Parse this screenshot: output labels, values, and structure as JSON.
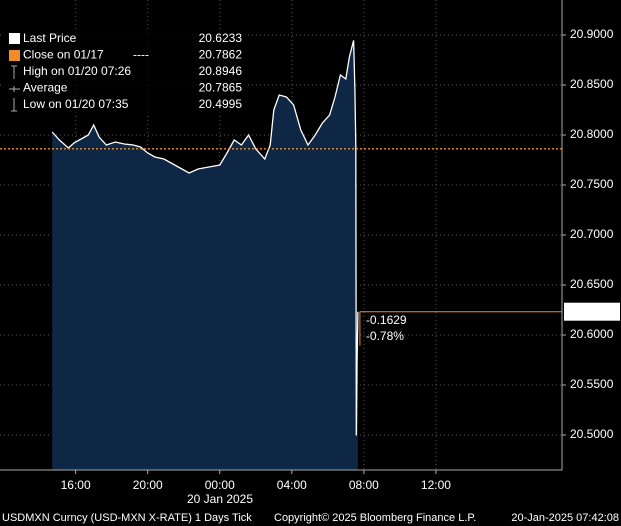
{
  "chart_data": {
    "type": "area",
    "series": [
      {
        "name": "Last Price",
        "color": "#ffffff",
        "fill": "#0d2744",
        "last_value": 20.6233,
        "x": [
          -9.3,
          -8.9,
          -8.4,
          -8.1,
          -7.7,
          -7.3,
          -7.0,
          -6.7,
          -6.3,
          -5.8,
          -5.3,
          -4.8,
          -4.4,
          -4.0,
          -3.6,
          -3.1,
          -2.6,
          -2.1,
          -1.7,
          -1.2,
          -0.6,
          0.0,
          0.4,
          0.8,
          1.2,
          1.6,
          2.0,
          2.5,
          2.8,
          3.0,
          3.3,
          3.7,
          4.1,
          4.5,
          4.9,
          5.3,
          5.7,
          6.1,
          6.4,
          6.7,
          7.0,
          7.2,
          7.43,
          7.5,
          7.55,
          7.583,
          7.62,
          7.67
        ],
        "values": [
          20.803,
          20.795,
          20.787,
          20.792,
          20.796,
          20.8,
          20.81,
          20.798,
          20.79,
          20.793,
          20.791,
          20.79,
          20.788,
          20.782,
          20.778,
          20.776,
          20.771,
          20.766,
          20.762,
          20.766,
          20.768,
          20.77,
          20.782,
          20.795,
          20.79,
          20.8,
          20.786,
          20.776,
          20.79,
          20.825,
          20.84,
          20.838,
          20.83,
          20.805,
          20.79,
          20.8,
          20.812,
          20.82,
          20.838,
          20.86,
          20.856,
          20.878,
          20.8946,
          20.845,
          20.79,
          20.4995,
          20.57,
          20.6233
        ]
      }
    ],
    "legend_items": [
      {
        "label": "Close on 01/17",
        "marker": "----",
        "value": 20.7862,
        "color": "#f28c28"
      },
      {
        "label": "High on 01/20 07:26",
        "value": 20.8946
      },
      {
        "label": "Average",
        "value": 20.7865
      },
      {
        "label": "Low on 01/20 07:35",
        "value": 20.4995
      }
    ],
    "annotations": [
      "-0.1629",
      "-0.78%"
    ],
    "annotation_color": "#f28c28",
    "x_date_label": "20 Jan 2025",
    "xlim": [
      -12.2,
      19
    ],
    "xticks": [
      {
        "value": -8,
        "label": "16:00"
      },
      {
        "value": -4,
        "label": "20:00"
      },
      {
        "value": 0,
        "label": "00:00"
      },
      {
        "value": 4,
        "label": "04:00"
      },
      {
        "value": 8,
        "label": "08:00"
      },
      {
        "value": 12,
        "label": "12:00"
      }
    ],
    "ylim": [
      20.465,
      20.935
    ],
    "yticks": [
      {
        "value": 20.5,
        "label": "20.5000"
      },
      {
        "value": 20.55,
        "label": "20.5500"
      },
      {
        "value": 20.6,
        "label": "20.6000"
      },
      {
        "value": 20.65,
        "label": "20.6500"
      },
      {
        "value": 20.7,
        "label": "20.7000"
      },
      {
        "value": 20.75,
        "label": "20.7500"
      },
      {
        "value": 20.8,
        "label": "20.8000"
      },
      {
        "value": 20.85,
        "label": "20.8500"
      },
      {
        "value": 20.9,
        "label": "20.9000"
      }
    ],
    "grid": true,
    "legend": "upper left",
    "footer": [
      "USDMXN Curncy (USD-MXN X-RATE) 1 Days  Tick",
      "Copyright© 2025 Bloomberg Finance L.P.",
      "20-Jan-2025 07:42:08"
    ]
  }
}
